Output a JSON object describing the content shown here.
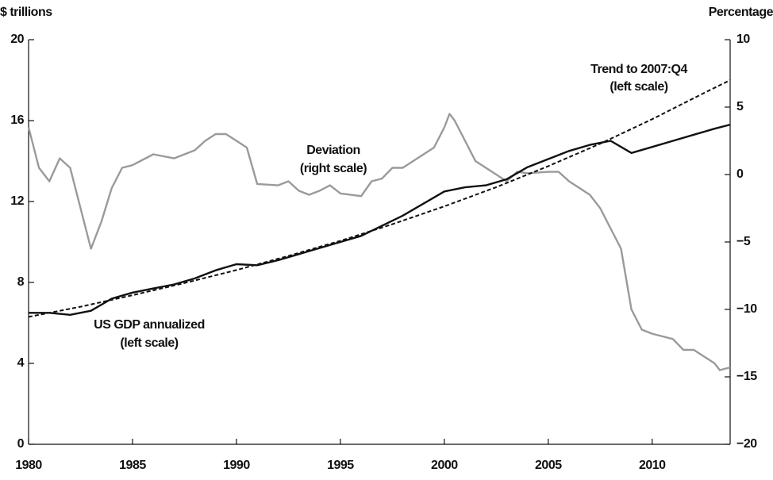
{
  "chart_data": {
    "type": "line",
    "ylabel": "$ trillions",
    "y2label": "Percentage",
    "xlim": [
      1980,
      2013.75
    ],
    "xticks": [
      1980,
      1985,
      1990,
      1995,
      2000,
      2005,
      2010
    ],
    "ylim": [
      0,
      20
    ],
    "yticks": [
      0,
      4,
      8,
      12,
      16,
      20
    ],
    "y2lim": [
      -20,
      10
    ],
    "y2ticks": [
      {
        "value": -20,
        "label": "−20"
      },
      {
        "value": -15,
        "label": "−15"
      },
      {
        "value": -10,
        "label": "−10"
      },
      {
        "value": -5,
        "label": "−5"
      },
      0,
      5,
      10
    ],
    "annotations": [
      "Deviation",
      "(right scale)",
      "Trend to 2007:Q4",
      "(left scale)",
      "US GDP annualized",
      "(left scale)"
    ],
    "series": [
      {
        "name": "Deviation",
        "color": "#9a9a9a",
        "axis": "y2",
        "dash": false,
        "x": [
          1980,
          1980.5,
          1981,
          1981.5,
          1982,
          1982.5,
          1983,
          1983.5,
          1984,
          1984.5,
          1985,
          1986,
          1987,
          1988,
          1988.5,
          1989,
          1989.5,
          1990,
          1990.5,
          1991,
          1992,
          1992.5,
          1993,
          1993.5,
          1994,
          1994.5,
          1995,
          1996,
          1996.5,
          1997,
          1997.5,
          1998,
          1998.5,
          1999,
          1999.5,
          2000,
          2000.25,
          2000.5,
          2001,
          2001.5,
          2002,
          2002.5,
          2003,
          2003.5,
          2004,
          2005,
          2005.5,
          2006,
          2006.5,
          2007,
          2007.5,
          2008,
          2008.5,
          2009,
          2009.5,
          2010,
          2010.5,
          2011,
          2011.5,
          2012,
          2012.5,
          2013,
          2013.25,
          2013.75
        ],
        "values": [
          3.5,
          0.5,
          -0.5,
          1.2,
          0.5,
          -2.5,
          -5.5,
          -3.5,
          -1,
          0.5,
          0.7,
          1.5,
          1.2,
          1.8,
          2.5,
          3,
          3,
          2.5,
          2,
          -0.7,
          -0.8,
          -0.5,
          -1.2,
          -1.5,
          -1.2,
          -0.8,
          -1.4,
          -1.6,
          -0.5,
          -0.3,
          0.5,
          0.5,
          1.0,
          1.5,
          2.0,
          3.5,
          4.5,
          4,
          2.5,
          1.0,
          0.5,
          0,
          -0.5,
          0.2,
          0.1,
          0.2,
          0.2,
          -0.5,
          -1,
          -1.5,
          -2.5,
          -4,
          -5.5,
          -10,
          -11.5,
          -11.8,
          -12.0,
          -12.2,
          -13,
          -13,
          -13.5,
          -14,
          -14.5,
          -14.3
        ]
      },
      {
        "name": "Trend to 2007:Q4",
        "color": "#111111",
        "axis": "y",
        "dash": true,
        "x": [
          1980,
          1982.5,
          1985,
          1987.5,
          1990,
          1992.5,
          1995,
          1997.5,
          2000,
          2002.5,
          2005,
          2007.5,
          2010,
          2012.5,
          2013.75
        ],
        "values": [
          6.3,
          6.8,
          7.37,
          7.97,
          8.61,
          9.31,
          10.06,
          10.88,
          11.76,
          12.71,
          13.75,
          14.86,
          16.07,
          17.37,
          18.0
        ]
      },
      {
        "name": "US GDP annualized",
        "color": "#111111",
        "axis": "y",
        "dash": false,
        "x": [
          1980,
          1981,
          1982,
          1983,
          1984,
          1985,
          1986,
          1987,
          1988,
          1989,
          1990,
          1991,
          1992,
          1993,
          1994,
          1995,
          1996,
          1997,
          1998,
          1999,
          2000,
          2001,
          2002,
          2003,
          2004,
          2005,
          2006,
          2007,
          2008,
          2009,
          2010,
          2011,
          2012,
          2013,
          2013.75
        ],
        "values": [
          6.5,
          6.5,
          6.4,
          6.6,
          7.2,
          7.5,
          7.7,
          7.9,
          8.2,
          8.6,
          8.9,
          8.85,
          9.1,
          9.4,
          9.7,
          10.0,
          10.3,
          10.8,
          11.3,
          11.9,
          12.5,
          12.7,
          12.8,
          13.1,
          13.7,
          14.1,
          14.5,
          14.8,
          15.0,
          14.4,
          14.7,
          15.0,
          15.3,
          15.6,
          15.8
        ]
      }
    ]
  }
}
